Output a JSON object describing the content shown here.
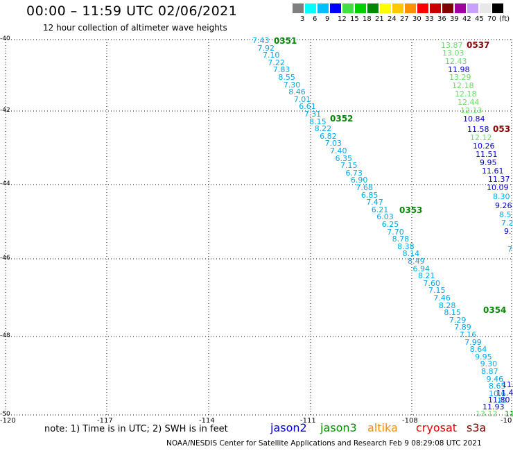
{
  "header": {
    "title": "00:00 – 11:59 UTC 02/06/2021",
    "subtitle": "12 hour collection of altimeter wave heights"
  },
  "legend": {
    "labels": [
      "3",
      "6",
      "9",
      "12",
      "15",
      "18",
      "21",
      "24",
      "27",
      "30",
      "33",
      "36",
      "39",
      "42",
      "45",
      "70"
    ],
    "unit": "(ft)",
    "colors": [
      "#7f7f7f",
      "#00ffff",
      "#00bfff",
      "#0000ff",
      "#40e040",
      "#00d000",
      "#008800",
      "#ffff00",
      "#ffc800",
      "#ff9000",
      "#ff0000",
      "#c80000",
      "#800000",
      "#a000a0",
      "#c8a0ff",
      "#e8e8e8",
      "#000000"
    ]
  },
  "axes": {
    "lat_labels": [
      "-40",
      "-42",
      "-44",
      "-46",
      "-48",
      "-50"
    ],
    "lon_labels": [
      "-120",
      "-117",
      "-114",
      "-111",
      "-108",
      "-10"
    ]
  },
  "tracks": {
    "jason3": {
      "color": "#00a8e8",
      "values": [
        "7.43",
        "7.92",
        "7.10",
        "7.22",
        "7.83",
        "8.55",
        "7.30",
        "8.46",
        "7.01",
        "6.61",
        "7.31",
        "8.15",
        "8.22",
        "6.82",
        "7.03",
        "7.40",
        "6.35",
        "7.15",
        "6.73",
        "6.90",
        "7.68",
        "6.85",
        "7.47",
        "6.21",
        "6.03",
        "6.25",
        "7.70",
        "8.78",
        "8.38",
        "8.14",
        "8.49",
        "6.94",
        "8.21",
        "7.60",
        "7.15",
        "7.46",
        "8.28",
        "8.15",
        "7.29",
        "7.89",
        "7.16",
        "7.99",
        "8.64",
        "9.95",
        "9.30",
        "8.87",
        "9.46",
        "8.65",
        "10.6",
        "10"
      ]
    },
    "east_track": {
      "values": [
        "13.87",
        "13.03",
        "12.43",
        "11.98",
        "13.29",
        "12.18",
        "12.18",
        "12.44",
        "12.13",
        "10.84",
        "11.58",
        "12.12",
        "10.26",
        "11.51",
        "9.95",
        "11.61",
        "11.37",
        "10.09",
        "8.30",
        "9.26",
        "8.5",
        "7.2",
        "9.",
        "7",
        "11.",
        "11.48",
        "11.80",
        "11.93",
        "13.12",
        "11"
      ]
    },
    "passes": [
      "0351",
      "0352",
      "0353",
      "0354",
      "0537",
      "053"
    ]
  },
  "note": "note:  1) Time is in UTC;  2) SWH is in feet",
  "satellites": [
    {
      "name": "jason2",
      "color": "#0000cc"
    },
    {
      "name": "jason3",
      "color": "#009000"
    },
    {
      "name": "altika",
      "color": "#ff8c00"
    },
    {
      "name": "cryosat",
      "color": "#e00000"
    },
    {
      "name": "s3a",
      "color": "#800000"
    }
  ],
  "footer": "NOAA/NESDIS Center for Satellite Applications and Research     Feb  9 08:29:08 UTC 2021"
}
